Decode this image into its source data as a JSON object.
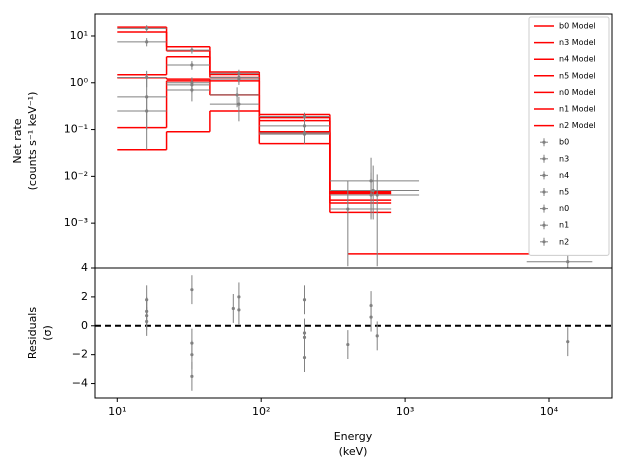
{
  "chart_data": [
    {
      "type": "step",
      "ylabel": [
        "Net rate",
        "(counts s⁻¹ keV⁻¹)"
      ],
      "xscale": "log",
      "yscale": "log",
      "xlim": [
        7,
        27400
      ],
      "ylim": [
        0.00011,
        29.5
      ],
      "xticks": [],
      "yticks": [
        {
          "value": 10,
          "label": "10¹"
        },
        {
          "value": 1,
          "label": "10⁰"
        },
        {
          "value": 0.1,
          "label": "10⁻¹"
        },
        {
          "value": 0.01,
          "label": "10⁻²"
        },
        {
          "value": 0.001,
          "label": "10⁻³"
        }
      ],
      "legend": "upper right",
      "models": [
        {
          "name": "b0 Model",
          "color": "#ff0000",
          "bins": [
            10,
            22,
            44,
            97,
            300,
            800
          ],
          "values": [
            15.5,
            5.9,
            1.7,
            0.21,
            0.0048
          ]
        },
        {
          "name": "n3 Model",
          "color": "#ff0000",
          "bins": [
            10,
            22,
            44,
            97,
            300,
            800
          ],
          "values": [
            12.2,
            4.8,
            1.5,
            0.18,
            0.0045
          ]
        },
        {
          "name": "n4 Model",
          "color": "#ff0000",
          "bins": [
            10,
            22,
            44,
            97,
            300,
            800
          ],
          "values": [
            1.48,
            3.6,
            1.3,
            0.155,
            0.0043
          ]
        },
        {
          "name": "n5 Model",
          "color": "#ff0000",
          "bins": [
            10,
            22,
            44,
            97,
            300,
            800
          ],
          "values": [
            1.28,
            1.2,
            1.1,
            0.09,
            0.0031
          ]
        },
        {
          "name": "n0 Model",
          "color": "#ff0000",
          "bins": [
            10,
            22,
            44,
            97,
            300,
            800
          ],
          "values": [
            0.11,
            1.1,
            0.55,
            0.085,
            0.0027
          ]
        },
        {
          "name": "n1 Model",
          "color": "#ff0000",
          "bins": [
            10,
            22,
            44,
            97,
            300,
            800
          ],
          "values": [
            0.037,
            0.09,
            0.25,
            0.05,
            0.0017
          ]
        },
        {
          "name": "n2 Model",
          "color": "#ff0000",
          "bins": [
            400,
            20000
          ],
          "values": [
            0.00022
          ]
        }
      ],
      "data_series": [
        {
          "name": "b0",
          "color": "#808080",
          "x": [
            16,
            33,
            70,
            200
          ],
          "values": [
            14.5,
            5.0,
            1.6,
            0.19
          ],
          "y_lower": [
            12,
            4.2,
            1.3,
            0.15
          ],
          "y_upper": [
            17,
            5.9,
            1.9,
            0.23
          ],
          "x_lower": [
            10,
            22,
            44,
            97
          ],
          "x_upper": [
            22,
            44,
            97,
            300
          ]
        },
        {
          "name": "n3",
          "color": "#808080",
          "x": [
            16,
            33,
            70,
            200
          ],
          "values": [
            7.5,
            2.4,
            1.3,
            0.12
          ],
          "y_lower": [
            6,
            1.9,
            1.0,
            0.09
          ],
          "y_upper": [
            9,
            2.9,
            1.6,
            0.15
          ],
          "x_lower": [
            10,
            22,
            44,
            97
          ],
          "x_upper": [
            22,
            44,
            97,
            300
          ]
        },
        {
          "name": "n4",
          "color": "#808080",
          "x": [
            16,
            33,
            68,
            200
          ],
          "values": [
            1.3,
            1.0,
            0.55,
            0.085
          ],
          "y_lower": [
            0.8,
            0.7,
            0.3,
            0.05
          ],
          "y_upper": [
            1.8,
            1.3,
            0.8,
            0.12
          ],
          "x_lower": [
            10,
            22,
            44,
            97
          ],
          "x_upper": [
            22,
            44,
            97,
            300
          ]
        },
        {
          "name": "n5",
          "color": "#808080",
          "x": [
            16,
            33,
            70,
            200,
            580
          ],
          "values": [
            0.5,
            0.7,
            0.35,
            0.08,
            0.008
          ],
          "y_lower": [
            0.037,
            0.4,
            0.15,
            0.05,
            0.0012
          ],
          "y_upper": [
            1.5,
            1.0,
            0.5,
            0.11,
            0.025
          ],
          "x_lower": [
            10,
            22,
            44,
            97,
            300
          ],
          "x_upper": [
            22,
            44,
            97,
            300,
            1250
          ]
        },
        {
          "name": "n0",
          "color": "#808080",
          "x": [
            16,
            33,
            70,
            580
          ],
          "values": [
            0.25,
            0.9,
            1.2,
            0.004
          ],
          "y_lower": [
            0.1,
            0.6,
            0.9,
            0.0013
          ],
          "y_upper": [
            0.5,
            1.2,
            1.5,
            0.012
          ],
          "x_lower": [
            10,
            22,
            44,
            300
          ],
          "x_upper": [
            22,
            44,
            97,
            1250
          ]
        },
        {
          "name": "n1",
          "color": "#808080",
          "x": [
            600,
            640
          ],
          "values": [
            0.005,
            0.004
          ],
          "y_lower": [
            0.0012,
            0.00012
          ],
          "y_upper": [
            0.017,
            0.011
          ],
          "x_lower": [
            300,
            300
          ],
          "x_upper": [
            1250,
            1250
          ]
        },
        {
          "name": "n2",
          "color": "#808080",
          "x": [
            400,
            13500
          ],
          "values": [
            0.002,
            0.00015
          ],
          "y_lower": [
            0.00012,
            0.00011
          ],
          "y_upper": [
            0.008,
            0.00022
          ],
          "x_lower": [
            300,
            7000
          ],
          "x_upper": [
            800,
            20000
          ]
        }
      ]
    },
    {
      "type": "errorbar",
      "xlabel": [
        "Energy",
        "(keV)"
      ],
      "ylabel": [
        "Residuals",
        "(σ)"
      ],
      "xscale": "log",
      "xlim": [
        7,
        27400
      ],
      "ylim": [
        -5,
        4
      ],
      "xticks": [
        {
          "value": 10,
          "label": "10¹"
        },
        {
          "value": 100,
          "label": "10²"
        },
        {
          "value": 1000,
          "label": "10³"
        },
        {
          "value": 10000,
          "label": "10⁴"
        }
      ],
      "yticks": [
        4,
        2,
        0,
        {
          "value": -2,
          "label": "−2"
        },
        {
          "value": -4,
          "label": "−4"
        }
      ],
      "hline": 0,
      "color": "#808080",
      "x": [
        16,
        16,
        16,
        16,
        33,
        33,
        33,
        33,
        64,
        70,
        70,
        200,
        200,
        200,
        200,
        400,
        580,
        580,
        640,
        13500
      ],
      "values": [
        1.8,
        1.0,
        0.7,
        0.3,
        2.5,
        -1.2,
        -2.0,
        -3.5,
        1.2,
        2.0,
        1.1,
        1.8,
        -0.5,
        -0.8,
        -2.2,
        -1.3,
        1.4,
        0.6,
        -0.7,
        -1.1
      ],
      "errors": [
        1,
        1,
        1,
        1,
        1,
        1,
        1,
        1,
        1,
        1,
        1,
        1,
        1,
        1,
        1,
        1,
        1,
        1,
        1,
        1
      ]
    }
  ]
}
